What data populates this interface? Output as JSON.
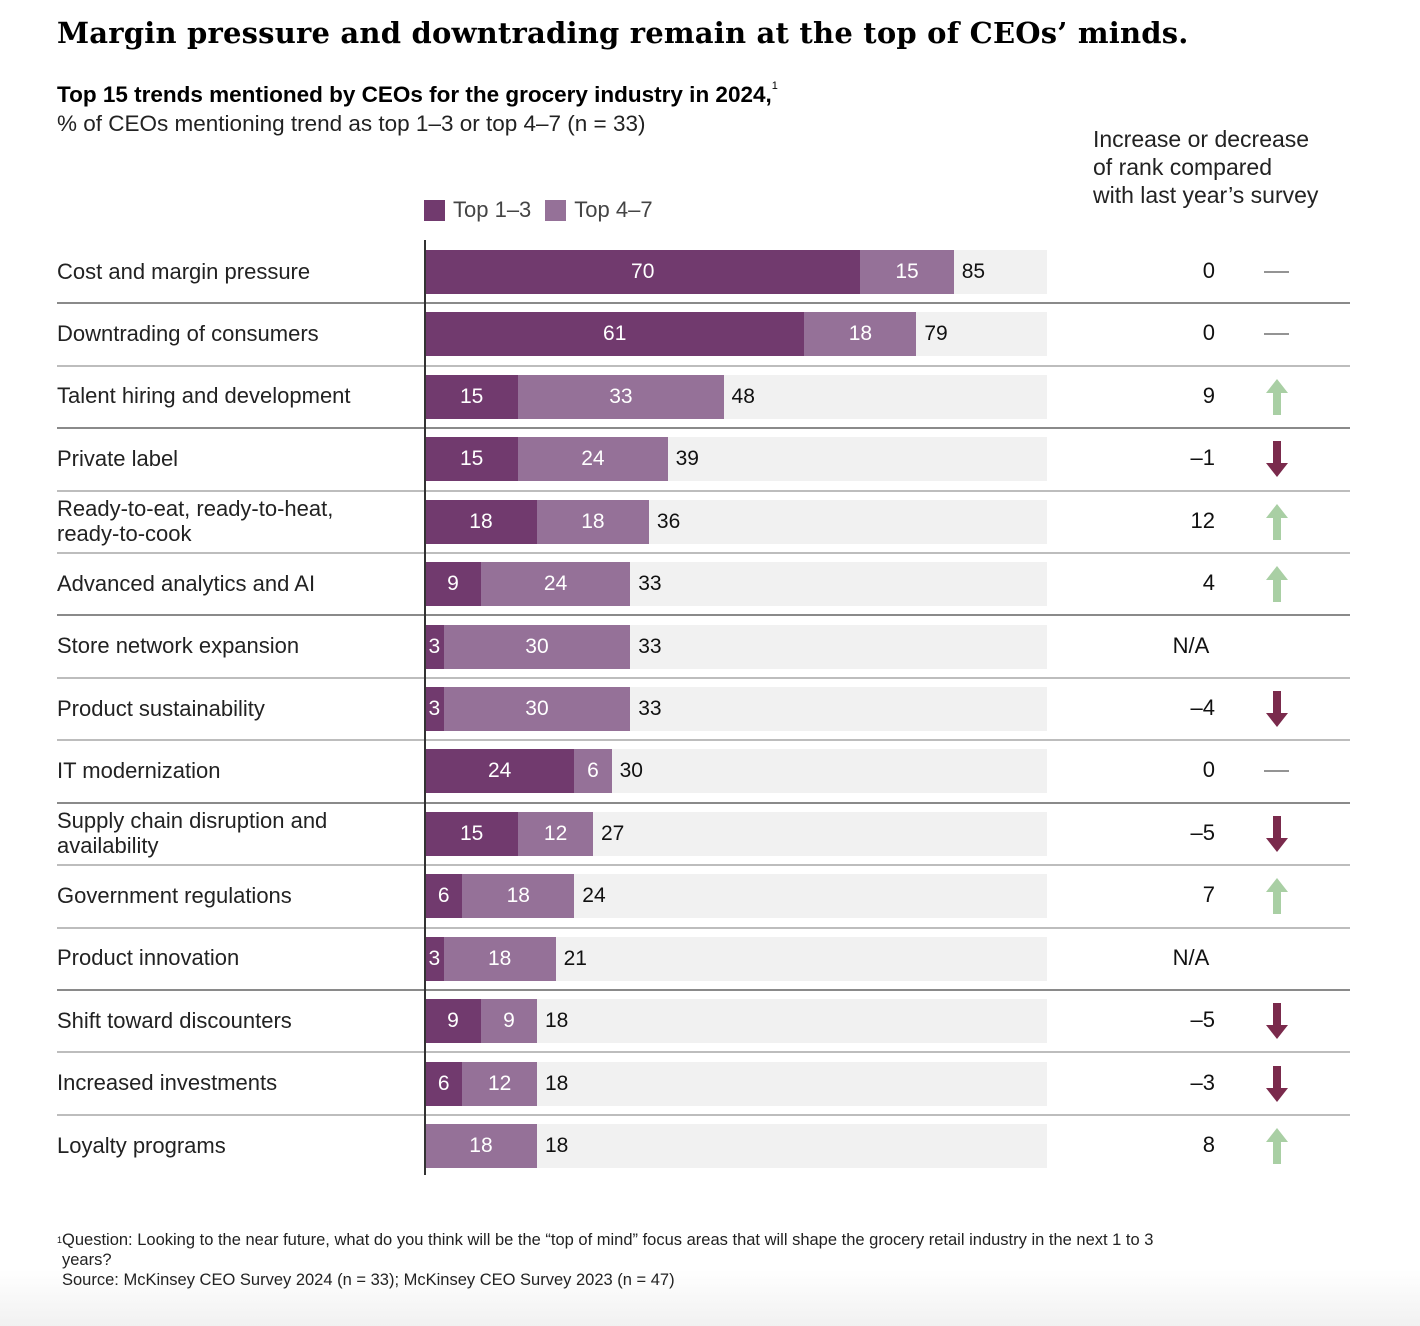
{
  "header": {
    "headline": "Margin pressure and downtrading remain at the top of CEOs’ minds.",
    "subtitle_bold": "Top 15 trends mentioned by CEOs for the grocery industry in 2024,",
    "subtitle_bold_sup": "1",
    "subtitle": "% of CEOs mentioning trend as top 1–3 or top 4–7 (n = 33)",
    "rank_header_lines": [
      "Increase or decrease",
      "of rank compared",
      "with last year’s survey"
    ]
  },
  "colors": {
    "top_1_3": "#713a6e",
    "top_4_7": "#957198",
    "track": "#f1f1f1",
    "arrow_up": "#a9cfa4",
    "arrow_down": "#7a2a4c",
    "dash": "#555555"
  },
  "chart_data": {
    "type": "bar",
    "orientation": "horizontal",
    "stacked": true,
    "title": "Top 15 trends mentioned by CEOs for the grocery industry in 2024",
    "subtitle": "% of CEOs mentioning trend as top 1–3 or top 4–7 (n = 33)",
    "xlabel": "",
    "ylabel": "",
    "xlim": [
      0,
      100
    ],
    "grid": false,
    "legend": {
      "position": "top-center",
      "entries": [
        "Top 1–3",
        "Top 4–7"
      ]
    },
    "categories": [
      "Cost and margin pressure",
      "Downtrading of consumers",
      "Talent hiring and development",
      "Private label",
      "Ready-to-eat, ready-to-heat, ready-to-cook",
      "Advanced analytics and AI",
      "Store network expansion",
      "Product sustainability",
      "IT modernization",
      "Supply chain disruption and availability",
      "Government regulations",
      "Product innovation",
      "Shift toward discounters",
      "Increased investments",
      "Loyalty programs"
    ],
    "series": [
      {
        "name": "Top 1–3",
        "values": [
          70,
          61,
          15,
          15,
          18,
          9,
          3,
          3,
          24,
          15,
          6,
          3,
          9,
          6,
          0
        ]
      },
      {
        "name": "Top 4–7",
        "values": [
          15,
          18,
          33,
          24,
          18,
          24,
          30,
          30,
          6,
          12,
          18,
          18,
          9,
          12,
          18
        ]
      }
    ],
    "totals": [
      85,
      79,
      48,
      39,
      36,
      33,
      33,
      33,
      30,
      27,
      24,
      21,
      18,
      18,
      18
    ],
    "rank_change": {
      "label": "Increase or decrease of rank compared with last year’s survey",
      "values": [
        "0",
        "0",
        "9",
        "–1",
        "12",
        "4",
        "N/A",
        "–4",
        "0",
        "–5",
        "7",
        "N/A",
        "–5",
        "–3",
        "8"
      ],
      "direction": [
        "flat",
        "flat",
        "up",
        "down",
        "up",
        "up",
        "none",
        "down",
        "flat",
        "down",
        "up",
        "none",
        "down",
        "down",
        "up"
      ]
    }
  },
  "rows": [
    {
      "label_lines": [
        "Cost and margin pressure"
      ]
    },
    {
      "label_lines": [
        "Downtrading of consumers"
      ]
    },
    {
      "label_lines": [
        "Talent hiring and development"
      ]
    },
    {
      "label_lines": [
        "Private label"
      ]
    },
    {
      "label_lines": [
        "Ready-to-eat, ready-to-heat,",
        "ready-to-cook"
      ]
    },
    {
      "label_lines": [
        "Advanced analytics and AI"
      ]
    },
    {
      "label_lines": [
        "Store network expansion"
      ]
    },
    {
      "label_lines": [
        "Product sustainability"
      ]
    },
    {
      "label_lines": [
        "IT modernization"
      ]
    },
    {
      "label_lines": [
        "Supply chain disruption and",
        "availability"
      ]
    },
    {
      "label_lines": [
        "Government regulations"
      ]
    },
    {
      "label_lines": [
        "Product innovation"
      ]
    },
    {
      "label_lines": [
        "Shift toward discounters"
      ]
    },
    {
      "label_lines": [
        "Increased investments"
      ]
    },
    {
      "label_lines": [
        "Loyalty programs"
      ]
    }
  ],
  "footnote": {
    "sup": "1",
    "question_line1": "Question: Looking to the near future, what do you think will be the “top of mind” focus areas that will shape the grocery retail industry in the next 1 to 3",
    "question_line2": "years?",
    "source": "Source: McKinsey CEO Survey 2024 (n = 33); McKinsey CEO Survey 2023 (n = 47)"
  }
}
